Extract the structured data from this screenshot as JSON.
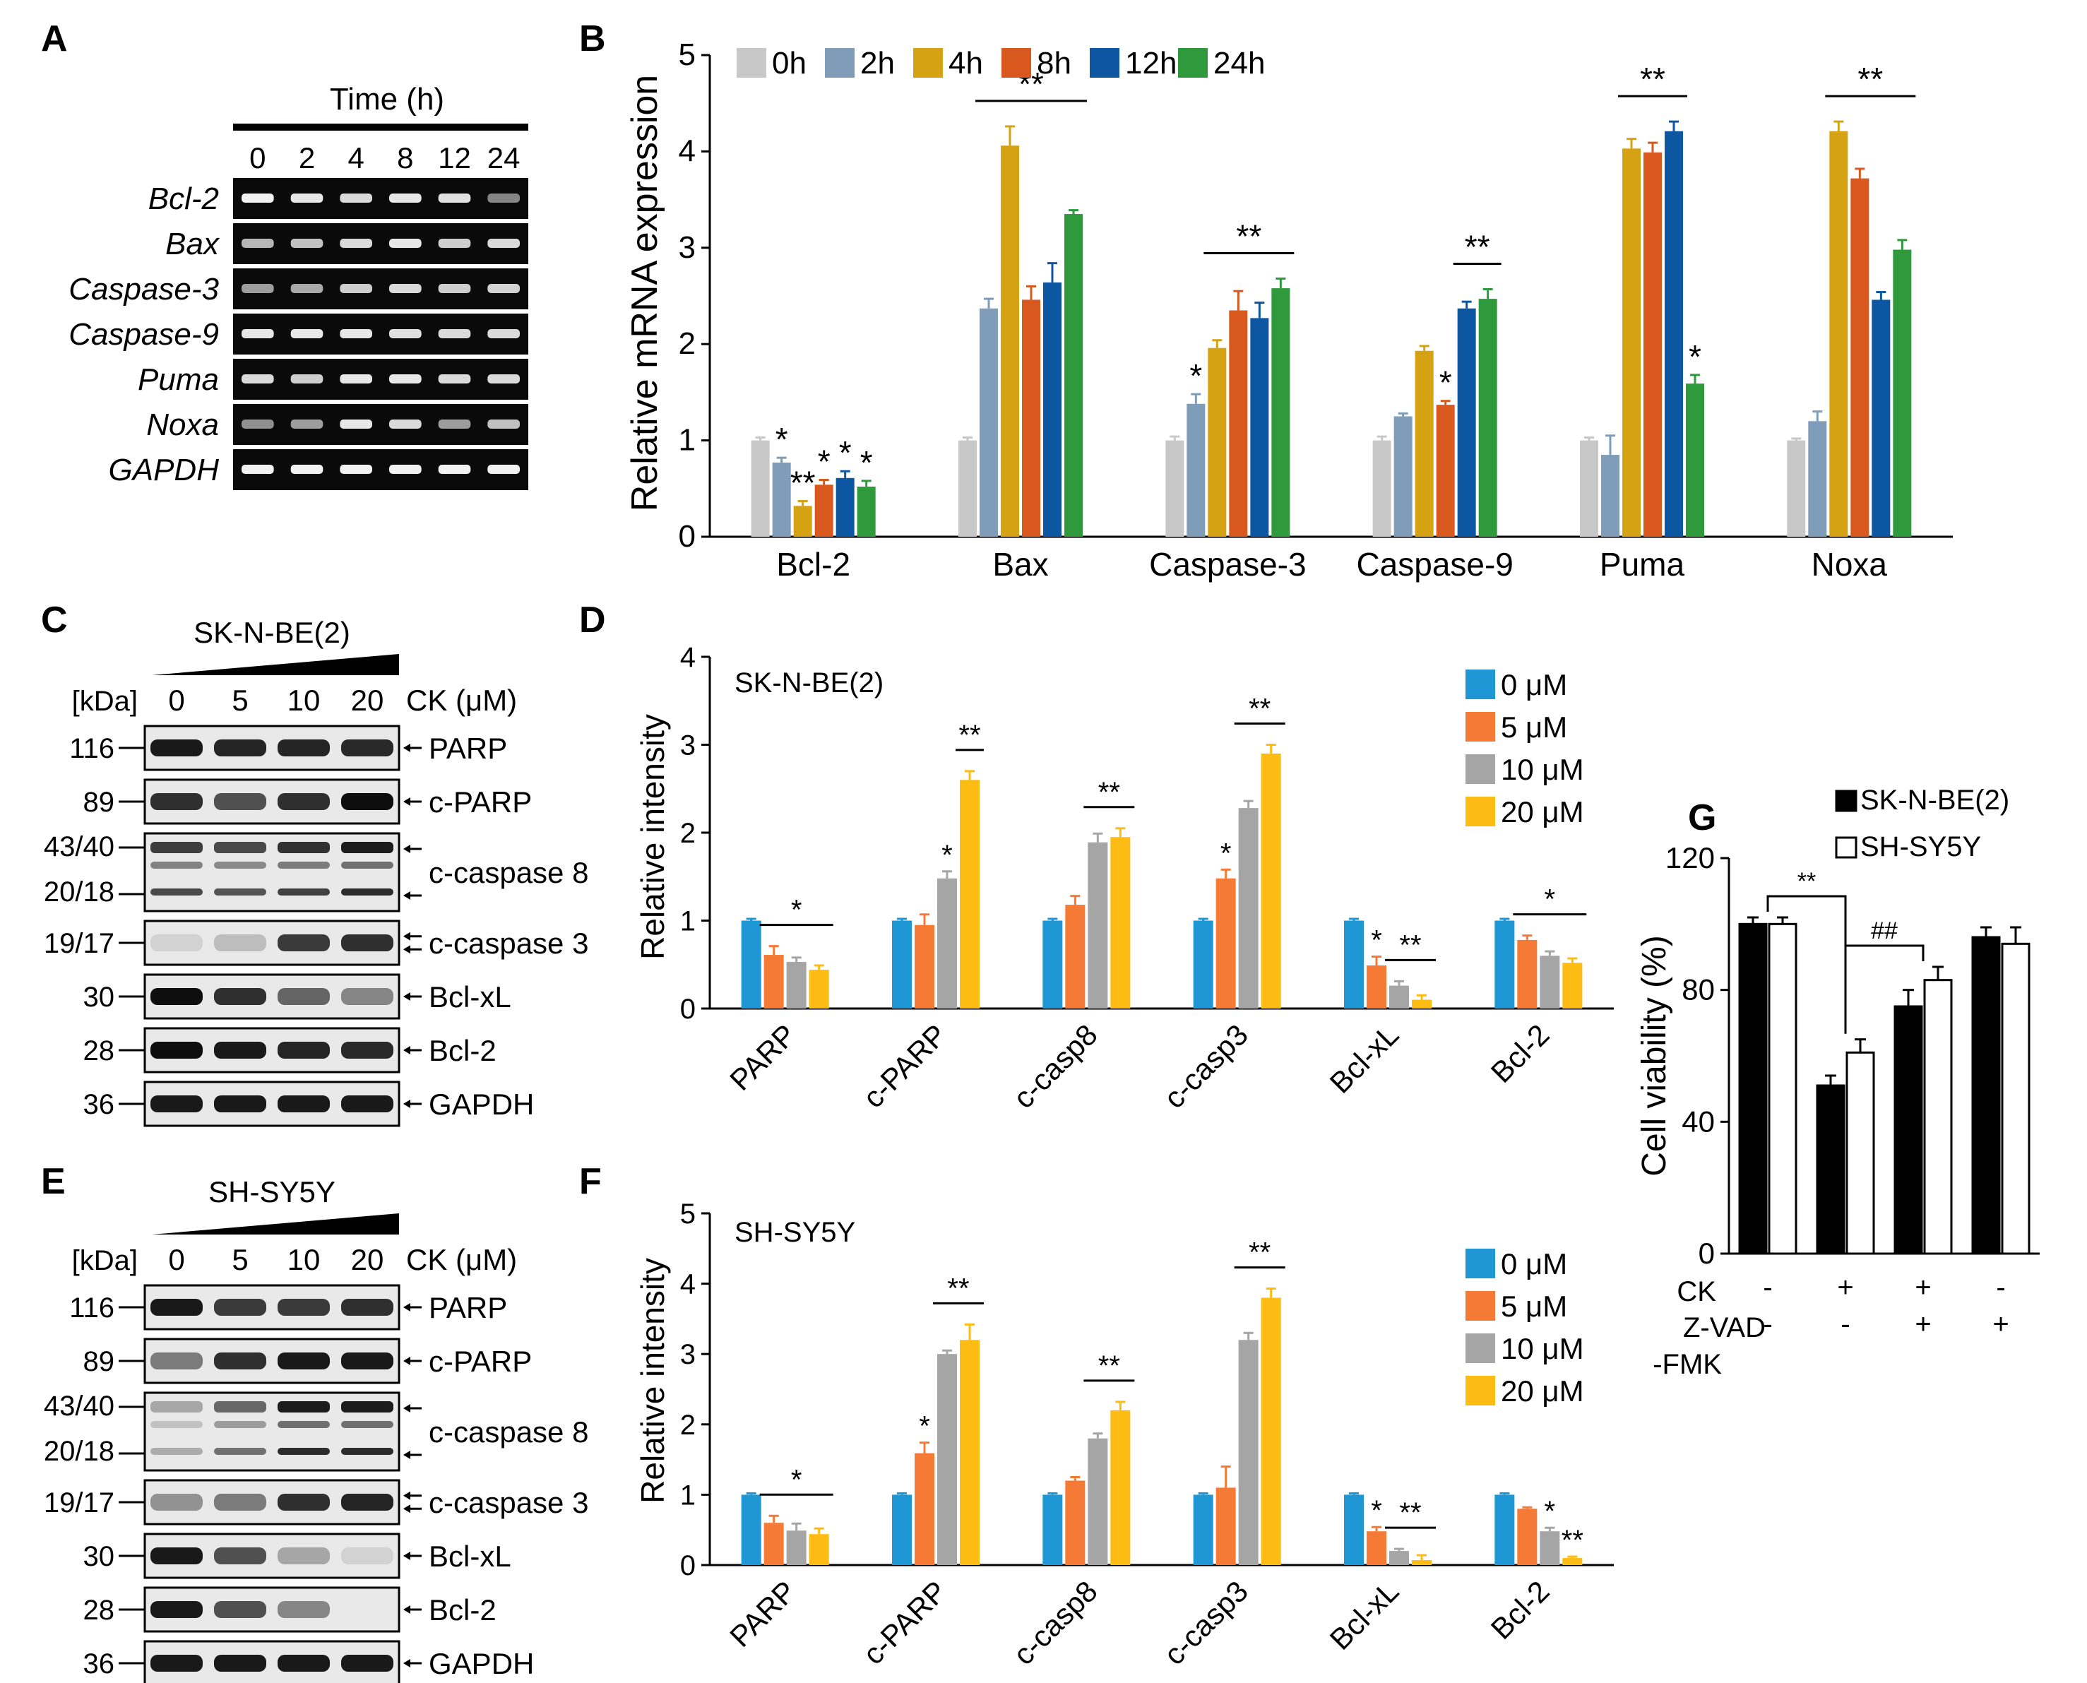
{
  "panel_letters": [
    "A",
    "B",
    "C",
    "D",
    "E",
    "F",
    "G"
  ],
  "colors": {
    "time": [
      "#c8c8c8",
      "#7f9db9",
      "#d5a213",
      "#d9581d",
      "#0d56a1",
      "#2f9a3c"
    ],
    "dose": [
      "#1f97d4",
      "#f47a35",
      "#a5a5a5",
      "#fdbc13"
    ],
    "g_filled": "#000000",
    "g_open": "#ffffff"
  },
  "panel_a": {
    "title": "Time (h)",
    "lanes": [
      "0",
      "2",
      "4",
      "8",
      "12",
      "24"
    ],
    "genes": [
      "Bcl-2",
      "Bax",
      "Caspase-3",
      "Caspase-9",
      "Puma",
      "Noxa",
      "GAPDH"
    ]
  },
  "panel_c": {
    "cell_line": "SK-N-BE(2)",
    "kda_label": "[kDa]",
    "doses": [
      "0",
      "5",
      "10",
      "20"
    ],
    "dose_unit": "CK (μM)",
    "mw": [
      "116",
      "89",
      "43/40",
      "20/18",
      "19/17",
      "30",
      "28",
      "36"
    ],
    "proteins": [
      "PARP",
      "c-PARP",
      "c-caspase 8",
      "c-caspase 3",
      "Bcl-xL",
      "Bcl-2",
      "GAPDH"
    ]
  },
  "panel_e": {
    "cell_line": "SH-SY5Y",
    "kda_label": "[kDa]",
    "doses": [
      "0",
      "5",
      "10",
      "20"
    ],
    "dose_unit": "CK (μM)",
    "mw": [
      "116",
      "89",
      "43/40",
      "20/18",
      "19/17",
      "30",
      "28",
      "36"
    ],
    "proteins": [
      "PARP",
      "c-PARP",
      "c-caspase 8",
      "c-caspase 3",
      "Bcl-xL",
      "Bcl-2",
      "GAPDH"
    ]
  },
  "panel_g_axis": {
    "row_labels": [
      "CK",
      "Z-VAD",
      "-FMK"
    ],
    "ck": [
      "-",
      "+",
      "+",
      "-"
    ],
    "zvad": [
      "-",
      "-",
      "+",
      "+"
    ]
  },
  "chart_data": [
    {
      "id": "B",
      "type": "bar",
      "ylabel": "Relative mRNA expression",
      "ylim": [
        0,
        5
      ],
      "yticks": [
        "0",
        "1",
        "2",
        "3",
        "4",
        "5"
      ],
      "legend_position": "top",
      "categories": [
        "Bcl-2",
        "Bax",
        "Caspase-3",
        "Caspase-9",
        "Puma",
        "Noxa"
      ],
      "series": [
        {
          "name": "0h",
          "values": [
            1.0,
            1.0,
            1.0,
            1.0,
            1.0,
            1.0
          ],
          "errors": [
            0.03,
            0.03,
            0.04,
            0.04,
            0.03,
            0.02
          ]
        },
        {
          "name": "2h",
          "values": [
            0.77,
            2.37,
            1.38,
            1.25,
            0.85,
            1.2
          ],
          "errors": [
            0.05,
            0.1,
            0.1,
            0.03,
            0.2,
            0.1
          ]
        },
        {
          "name": "4h",
          "values": [
            0.32,
            4.06,
            1.96,
            1.93,
            4.03,
            4.21
          ],
          "errors": [
            0.05,
            0.2,
            0.08,
            0.05,
            0.1,
            0.1
          ]
        },
        {
          "name": "8h",
          "values": [
            0.54,
            2.46,
            2.35,
            1.37,
            3.99,
            3.72
          ],
          "errors": [
            0.05,
            0.14,
            0.2,
            0.04,
            0.1,
            0.1
          ]
        },
        {
          "name": "12h",
          "values": [
            0.61,
            2.64,
            2.27,
            2.37,
            4.21,
            2.46
          ],
          "errors": [
            0.07,
            0.2,
            0.16,
            0.07,
            0.1,
            0.08
          ]
        },
        {
          "name": "24h",
          "values": [
            0.52,
            3.35,
            2.58,
            2.47,
            1.59,
            2.98
          ],
          "errors": [
            0.06,
            0.04,
            0.1,
            0.1,
            0.09,
            0.1
          ]
        }
      ],
      "significance": [
        {
          "cat": 0,
          "series": 1,
          "text": "*"
        },
        {
          "cat": 0,
          "series": 2,
          "text": "**"
        },
        {
          "cat": 0,
          "series": 3,
          "text": "*"
        },
        {
          "cat": 0,
          "series": 4,
          "text": "*"
        },
        {
          "cat": 0,
          "series": 5,
          "text": "*"
        },
        {
          "cat": 2,
          "series": 1,
          "text": "*"
        },
        {
          "cat": 3,
          "series": 3,
          "text": "*"
        },
        {
          "cat": 4,
          "series": 5,
          "text": "*"
        }
      ],
      "brackets": [
        {
          "cat": 1,
          "from": 1,
          "to": 5,
          "text": "**"
        },
        {
          "cat": 2,
          "from": 2,
          "to": 5,
          "text": "**"
        },
        {
          "cat": 3,
          "from": 4,
          "to": 5,
          "text": "**"
        },
        {
          "cat": 4,
          "from": 2,
          "to": 4,
          "text": "**"
        },
        {
          "cat": 5,
          "from": 2,
          "to": 5,
          "text": "**"
        }
      ]
    },
    {
      "id": "D",
      "type": "bar",
      "title": "SK-N-BE(2)",
      "ylabel": "Relative intensity",
      "ylim": [
        0,
        4
      ],
      "yticks": [
        "0",
        "1",
        "2",
        "3",
        "4"
      ],
      "legend_position": "top-right",
      "categories": [
        "PARP",
        "c-PARP",
        "c-casp8",
        "c-casp3",
        "Bcl-xL",
        "Bcl-2"
      ],
      "series": [
        {
          "name": "0 μM",
          "values": [
            1.0,
            1.0,
            1.0,
            1.0,
            1.0,
            1.0
          ],
          "errors": [
            0.02,
            0.02,
            0.02,
            0.02,
            0.02,
            0.02
          ]
        },
        {
          "name": "5 μM",
          "values": [
            0.61,
            0.95,
            1.18,
            1.48,
            0.49,
            0.78
          ],
          "errors": [
            0.1,
            0.12,
            0.1,
            0.1,
            0.1,
            0.05
          ]
        },
        {
          "name": "10 μM",
          "values": [
            0.53,
            1.48,
            1.89,
            2.28,
            0.26,
            0.6
          ],
          "errors": [
            0.05,
            0.08,
            0.1,
            0.08,
            0.05,
            0.05
          ]
        },
        {
          "name": "20 μM",
          "values": [
            0.44,
            2.6,
            1.95,
            2.9,
            0.1,
            0.52
          ],
          "errors": [
            0.05,
            0.1,
            0.1,
            0.1,
            0.05,
            0.05
          ]
        }
      ],
      "significance": [
        {
          "cat": 1,
          "series": 2,
          "text": "*"
        },
        {
          "cat": 3,
          "series": 1,
          "text": "*"
        },
        {
          "cat": 4,
          "series": 1,
          "text": "*"
        }
      ],
      "brackets": [
        {
          "cat": 0,
          "from": 1,
          "to": 3,
          "text": "*"
        },
        {
          "cat": 1,
          "from": 3,
          "to": 3,
          "text": "**"
        },
        {
          "cat": 2,
          "from": 2,
          "to": 3,
          "text": "**"
        },
        {
          "cat": 3,
          "from": 2,
          "to": 3,
          "text": "**"
        },
        {
          "cat": 4,
          "from": 2,
          "to": 3,
          "text": "**"
        },
        {
          "cat": 5,
          "from": 1,
          "to": 3,
          "text": "*"
        }
      ]
    },
    {
      "id": "F",
      "type": "bar",
      "title": "SH-SY5Y",
      "ylabel": "Relative intensity",
      "ylim": [
        0,
        5
      ],
      "yticks": [
        "0",
        "1",
        "2",
        "3",
        "4",
        "5"
      ],
      "legend_position": "top-right",
      "categories": [
        "PARP",
        "c-PARP",
        "c-casp8",
        "c-casp3",
        "Bcl-xL",
        "Bcl-2"
      ],
      "series": [
        {
          "name": "0 μM",
          "values": [
            1.0,
            1.0,
            1.0,
            1.0,
            1.0,
            1.0
          ],
          "errors": [
            0.02,
            0.02,
            0.02,
            0.02,
            0.02,
            0.02
          ]
        },
        {
          "name": "5 μM",
          "values": [
            0.6,
            1.59,
            1.2,
            1.1,
            0.48,
            0.8
          ],
          "errors": [
            0.1,
            0.15,
            0.05,
            0.3,
            0.06,
            0.02
          ]
        },
        {
          "name": "10 μM",
          "values": [
            0.49,
            3.0,
            1.8,
            3.2,
            0.2,
            0.48
          ],
          "errors": [
            0.1,
            0.05,
            0.07,
            0.1,
            0.03,
            0.05
          ]
        },
        {
          "name": "20 μM",
          "values": [
            0.44,
            3.2,
            2.2,
            3.8,
            0.07,
            0.1
          ],
          "errors": [
            0.08,
            0.22,
            0.12,
            0.13,
            0.07,
            0.02
          ]
        }
      ],
      "significance": [
        {
          "cat": 1,
          "series": 1,
          "text": "*"
        },
        {
          "cat": 4,
          "series": 1,
          "text": "*"
        },
        {
          "cat": 5,
          "series": 2,
          "text": "*"
        },
        {
          "cat": 5,
          "series": 3,
          "text": "**"
        }
      ],
      "brackets": [
        {
          "cat": 0,
          "from": 1,
          "to": 3,
          "text": "*"
        },
        {
          "cat": 1,
          "from": 2,
          "to": 3,
          "text": "**"
        },
        {
          "cat": 2,
          "from": 2,
          "to": 3,
          "text": "**"
        },
        {
          "cat": 3,
          "from": 2,
          "to": 3,
          "text": "**"
        },
        {
          "cat": 4,
          "from": 2,
          "to": 3,
          "text": "**"
        }
      ]
    },
    {
      "id": "G",
      "type": "bar",
      "ylabel": "Cell viability (%)",
      "ylim": [
        0,
        120
      ],
      "yticks": [
        "0",
        "40",
        "80",
        "120"
      ],
      "legend_position": "top",
      "groups": 4,
      "series": [
        {
          "name": "SK-N-BE(2)",
          "values": [
            100,
            51,
            75,
            96
          ],
          "errors": [
            2,
            3,
            5,
            3
          ]
        },
        {
          "name": "SH-SY5Y",
          "values": [
            100,
            61,
            83,
            94
          ],
          "errors": [
            2,
            4,
            4,
            5
          ]
        }
      ],
      "brackets": [
        {
          "from_group": 0,
          "to_group": 1,
          "text": "**"
        },
        {
          "from_group": 1,
          "to_group": 2,
          "text": "##"
        }
      ]
    }
  ]
}
